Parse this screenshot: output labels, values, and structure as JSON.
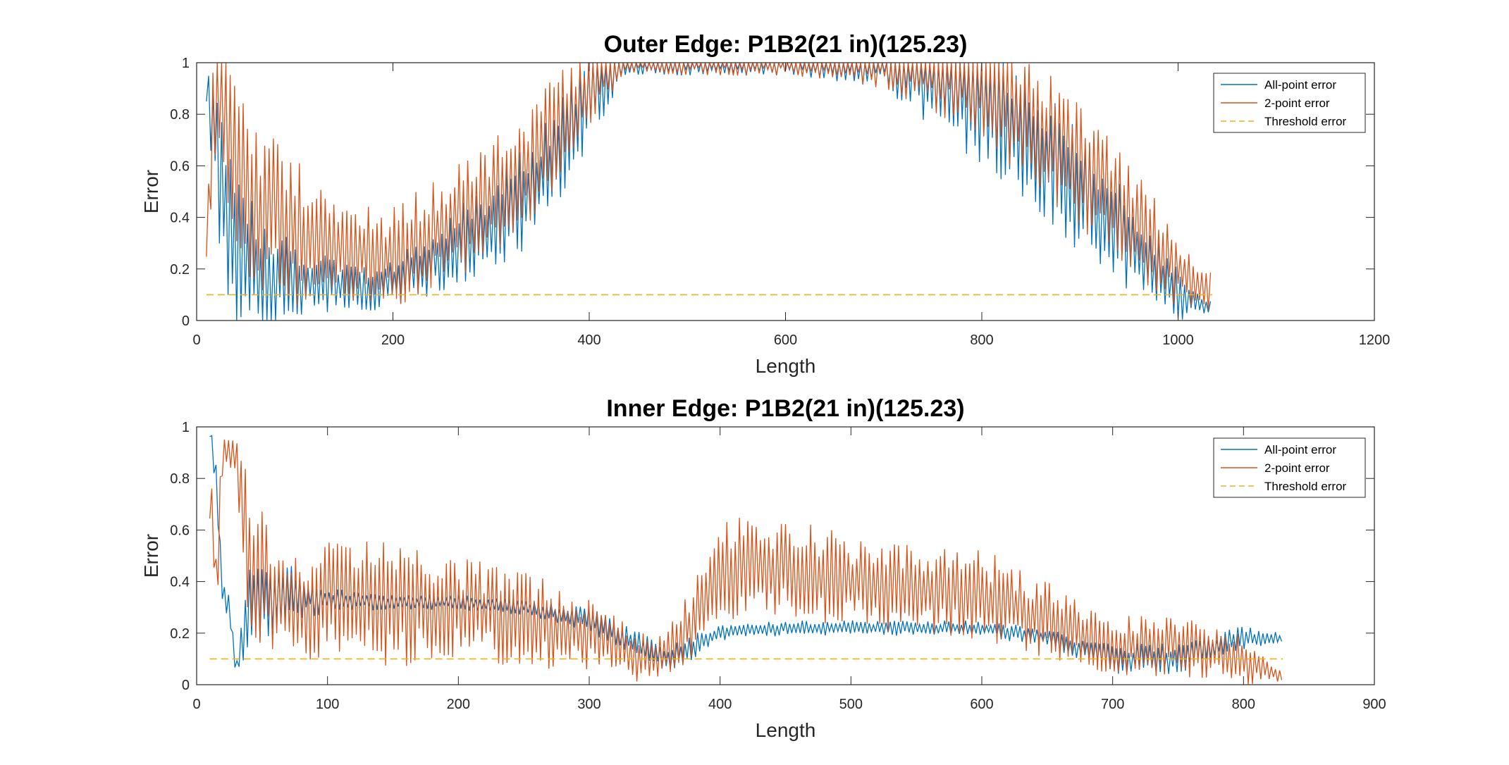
{
  "chart_data": [
    {
      "type": "line",
      "title": "Outer Edge: P1B2(21 in)(125.23)",
      "xlabel": "Length",
      "ylabel": "Error",
      "xlim": [
        0,
        1200
      ],
      "ylim": [
        0,
        1
      ],
      "xticks": [
        0,
        200,
        400,
        600,
        800,
        1000,
        1200
      ],
      "yticks": [
        0,
        0.2,
        0.4,
        0.6,
        0.8,
        1
      ],
      "xtick_labels": [
        "0",
        "200",
        "400",
        "600",
        "800",
        "1000",
        "1200"
      ],
      "ytick_labels": [
        "0",
        "0.2",
        "0.4",
        "0.6",
        "0.8",
        "1"
      ],
      "grid": false,
      "legend_position": "top-right",
      "series": [
        {
          "name": "All-point error",
          "color": "#0072BD",
          "style": "solid",
          "x": [
            10,
            20,
            30,
            40,
            50,
            60,
            80,
            100,
            120,
            150,
            180,
            200,
            230,
            260,
            300,
            330,
            360,
            380,
            400,
            420,
            440,
            500,
            600,
            700,
            750,
            800,
            850,
            900,
            950,
            1000,
            1035
          ],
          "y": [
            0.9,
            0.7,
            0.4,
            0.3,
            0.25,
            0.2,
            0.18,
            0.16,
            0.15,
            0.13,
            0.12,
            0.14,
            0.2,
            0.28,
            0.36,
            0.46,
            0.6,
            0.72,
            0.85,
            0.95,
            1.0,
            1.0,
            1.0,
            1.0,
            0.96,
            0.85,
            0.7,
            0.5,
            0.3,
            0.1,
            0.05
          ],
          "amplitude": [
            0.1,
            0.3,
            0.35,
            0.35,
            0.3,
            0.25,
            0.2,
            0.15,
            0.12,
            0.1,
            0.08,
            0.1,
            0.12,
            0.15,
            0.18,
            0.2,
            0.2,
            0.2,
            0.18,
            0.12,
            0.05,
            0.05,
            0.05,
            0.1,
            0.22,
            0.25,
            0.25,
            0.25,
            0.2,
            0.1,
            0.02
          ]
        },
        {
          "name": "2-point error",
          "color": "#D95319",
          "style": "solid",
          "x": [
            10,
            20,
            30,
            40,
            50,
            60,
            80,
            100,
            120,
            150,
            180,
            200,
            230,
            260,
            300,
            330,
            360,
            380,
            400,
            420,
            440,
            500,
            600,
            700,
            750,
            800,
            850,
            900,
            950,
            1000,
            1035
          ],
          "y": [
            0.3,
            0.9,
            0.8,
            0.6,
            0.5,
            0.45,
            0.4,
            0.35,
            0.3,
            0.28,
            0.25,
            0.25,
            0.3,
            0.38,
            0.46,
            0.56,
            0.7,
            0.8,
            0.9,
            0.98,
            1.0,
            1.0,
            1.0,
            1.0,
            1.0,
            0.92,
            0.78,
            0.6,
            0.4,
            0.2,
            0.1
          ],
          "amplitude": [
            0.1,
            0.35,
            0.4,
            0.4,
            0.4,
            0.35,
            0.3,
            0.3,
            0.25,
            0.22,
            0.2,
            0.2,
            0.22,
            0.24,
            0.25,
            0.25,
            0.25,
            0.22,
            0.18,
            0.12,
            0.05,
            0.05,
            0.05,
            0.1,
            0.2,
            0.25,
            0.25,
            0.25,
            0.22,
            0.15,
            0.1
          ]
        },
        {
          "name": "Threshold error",
          "color": "#EDB120",
          "style": "dashed",
          "x": [
            10,
            1035
          ],
          "y": [
            0.1,
            0.1
          ]
        }
      ]
    },
    {
      "type": "line",
      "title": "Inner Edge: P1B2(21 in)(125.23)",
      "xlabel": "Length",
      "ylabel": "Error",
      "xlim": [
        0,
        900
      ],
      "ylim": [
        0,
        1
      ],
      "xticks": [
        0,
        100,
        200,
        300,
        400,
        500,
        600,
        700,
        800,
        900
      ],
      "yticks": [
        0,
        0.2,
        0.4,
        0.6,
        0.8,
        1
      ],
      "xtick_labels": [
        "0",
        "100",
        "200",
        "300",
        "400",
        "500",
        "600",
        "700",
        "800",
        "900"
      ],
      "ytick_labels": [
        "0",
        "0.2",
        "0.4",
        "0.6",
        "0.8",
        "1"
      ],
      "grid": false,
      "legend_position": "top-right",
      "series": [
        {
          "name": "All-point error",
          "color": "#0072BD",
          "style": "solid",
          "x": [
            10,
            15,
            20,
            25,
            30,
            40,
            60,
            80,
            100,
            150,
            200,
            250,
            300,
            340,
            360,
            380,
            400,
            450,
            500,
            600,
            650,
            700,
            750,
            800,
            830
          ],
          "y": [
            1.0,
            0.8,
            0.35,
            0.3,
            0.05,
            0.3,
            0.33,
            0.35,
            0.33,
            0.32,
            0.32,
            0.3,
            0.25,
            0.15,
            0.1,
            0.15,
            0.2,
            0.22,
            0.22,
            0.22,
            0.18,
            0.1,
            0.1,
            0.18,
            0.18
          ],
          "amplitude": [
            0.05,
            0.1,
            0.05,
            0.05,
            0.05,
            0.15,
            0.15,
            0.1,
            0.05,
            0.03,
            0.03,
            0.03,
            0.05,
            0.05,
            0.05,
            0.05,
            0.03,
            0.03,
            0.03,
            0.03,
            0.04,
            0.06,
            0.06,
            0.05,
            0.02
          ]
        },
        {
          "name": "2-point error",
          "color": "#D95319",
          "style": "solid",
          "x": [
            10,
            15,
            20,
            25,
            30,
            40,
            60,
            80,
            100,
            150,
            200,
            250,
            300,
            340,
            360,
            380,
            400,
            450,
            500,
            600,
            650,
            700,
            750,
            800,
            830
          ],
          "y": [
            0.8,
            0.4,
            0.9,
            0.9,
            0.9,
            0.5,
            0.35,
            0.3,
            0.33,
            0.3,
            0.3,
            0.25,
            0.2,
            0.1,
            0.12,
            0.25,
            0.45,
            0.45,
            0.4,
            0.35,
            0.25,
            0.15,
            0.15,
            0.1,
            0.03
          ],
          "amplitude": [
            0.2,
            0.2,
            0.1,
            0.1,
            0.1,
            0.3,
            0.25,
            0.2,
            0.25,
            0.25,
            0.2,
            0.2,
            0.15,
            0.1,
            0.1,
            0.15,
            0.2,
            0.2,
            0.18,
            0.18,
            0.15,
            0.12,
            0.12,
            0.1,
            0.02
          ]
        },
        {
          "name": "Threshold error",
          "color": "#EDB120",
          "style": "dashed",
          "x": [
            10,
            830
          ],
          "y": [
            0.1,
            0.1
          ]
        }
      ]
    }
  ]
}
